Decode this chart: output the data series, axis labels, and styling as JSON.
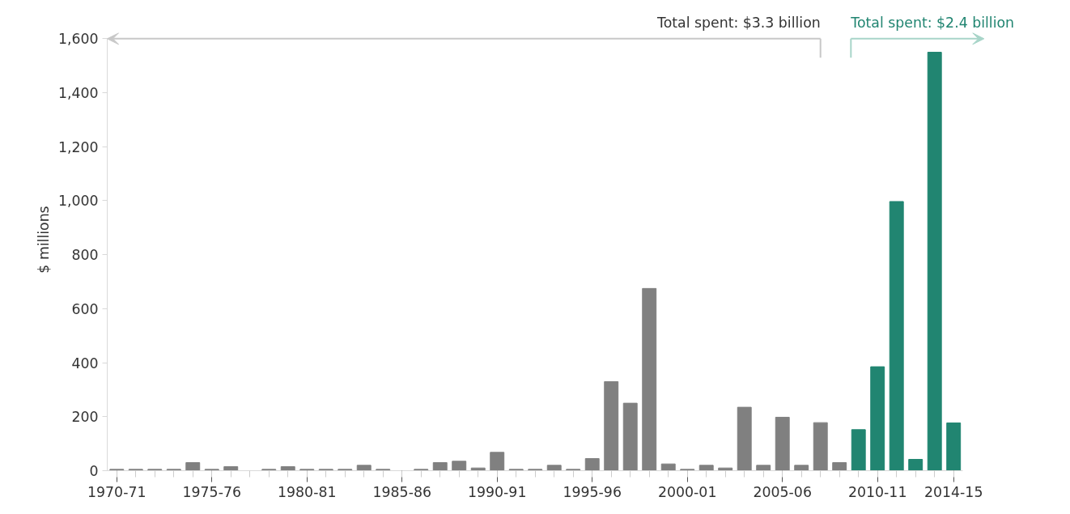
{
  "chart_data": {
    "type": "bar",
    "categories": [
      "1970-71",
      null,
      null,
      null,
      null,
      "1975-76",
      null,
      null,
      null,
      null,
      "1980-81",
      null,
      null,
      null,
      null,
      "1985-86",
      null,
      null,
      null,
      null,
      "1990-91",
      null,
      null,
      null,
      null,
      "1995-96",
      null,
      null,
      null,
      null,
      "2000-01",
      null,
      null,
      null,
      null,
      "2005-06",
      null,
      null,
      null,
      null,
      "2010-11",
      null,
      null,
      null,
      "2014-15"
    ],
    "values": [
      5,
      5,
      5,
      5,
      30,
      5,
      15,
      0,
      5,
      15,
      5,
      5,
      5,
      20,
      5,
      0,
      5,
      30,
      35,
      10,
      68,
      5,
      5,
      20,
      5,
      45,
      330,
      250,
      675,
      25,
      5,
      20,
      10,
      235,
      20,
      198,
      20,
      178,
      30,
      152,
      385,
      997,
      42,
      1550,
      177
    ],
    "colors": [
      "#808080",
      "#808080",
      "#808080",
      "#808080",
      "#808080",
      "#808080",
      "#808080",
      "#808080",
      "#808080",
      "#808080",
      "#808080",
      "#808080",
      "#808080",
      "#808080",
      "#808080",
      "#808080",
      "#808080",
      "#808080",
      "#808080",
      "#808080",
      "#808080",
      "#808080",
      "#808080",
      "#808080",
      "#808080",
      "#808080",
      "#808080",
      "#808080",
      "#808080",
      "#808080",
      "#808080",
      "#808080",
      "#808080",
      "#808080",
      "#808080",
      "#808080",
      "#808080",
      "#808080",
      "#808080",
      "#218571",
      "#218571",
      "#218571",
      "#218571",
      "#218571",
      "#218571"
    ],
    "ylabel": "$ millions",
    "ylim": [
      0,
      1600
    ],
    "yticks": [
      0,
      200,
      400,
      600,
      800,
      {
        "value": 1000,
        "label": "1,000"
      },
      {
        "value": 1200,
        "label": "1,200"
      },
      {
        "value": 1400,
        "label": "1,400"
      },
      {
        "value": 1600,
        "label": "1,600"
      }
    ],
    "annotations": [
      "Total spent: $3.3 billion",
      "Total spent: $2.4 billion"
    ]
  }
}
